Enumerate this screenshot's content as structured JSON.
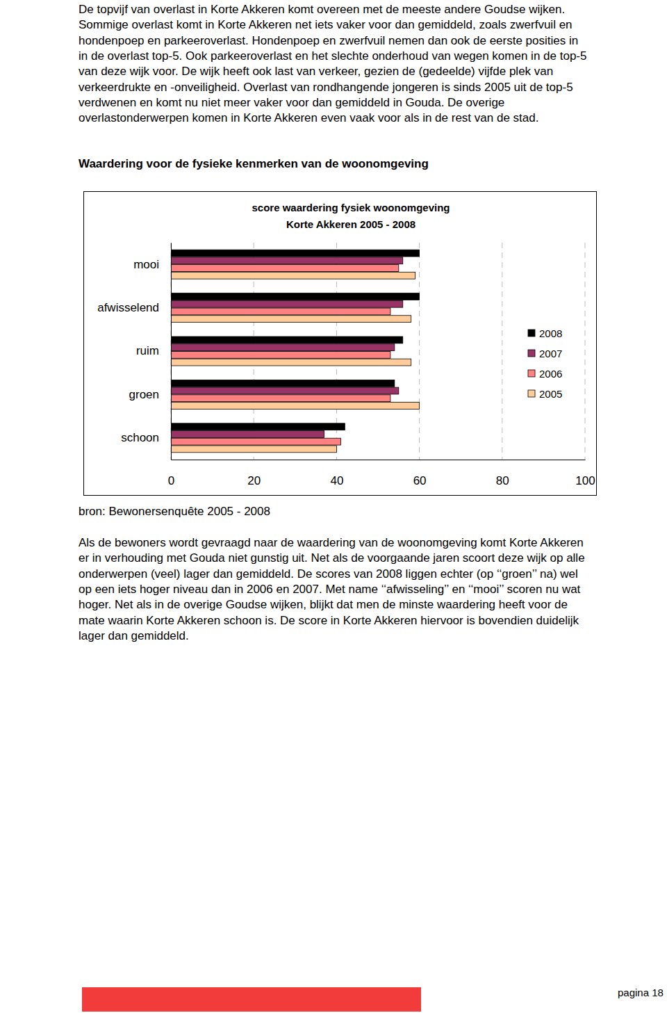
{
  "paragraphs_top": [
    "De topvijf van overlast in Korte Akkeren komt overeen met de meeste andere Goudse wijken.",
    "Sommige overlast komt in Korte Akkeren net iets vaker voor dan gemiddeld, zoals zwerfvuil en",
    "hondenpoep en parkeeroverlast. Hondenpoep en zwerfvuil nemen dan ook de eerste posities in",
    "in de overlast top-5. Ook parkeeroverlast en het slechte onderhoud van wegen komen in de top-5",
    "van deze wijk voor. De wijk heeft ook last van verkeer, gezien de (gedeelde) vijfde plek van",
    "verkeerdrukte en -onveiligheid. Overlast van rondhangende jongeren is sinds 2005 uit de top-5",
    "verdwenen en komt nu niet meer vaker voor dan gemiddeld in Gouda. De overige",
    "overlastonderwerpen komen in Korte Akkeren even vaak voor als in de rest van de stad."
  ],
  "heading": "Waardering voor de fysieke kenmerken van de woonomgeving",
  "chart_data": {
    "type": "bar",
    "orientation": "horizontal",
    "title": "score waardering fysiek woonomgeving",
    "subtitle": "Korte Akkeren 2005 - 2008",
    "categories": [
      "mooi",
      "afwisselend",
      "ruim",
      "groen",
      "schoon"
    ],
    "series": [
      {
        "name": "2008",
        "color": "#000000",
        "values": [
          60,
          60,
          56,
          54,
          42
        ]
      },
      {
        "name": "2007",
        "color": "#993366",
        "values": [
          56,
          56,
          54,
          55,
          37
        ]
      },
      {
        "name": "2006",
        "color": "#ff8080",
        "values": [
          55,
          53,
          53,
          53,
          41
        ]
      },
      {
        "name": "2005",
        "color": "#ffcc99",
        "values": [
          59,
          58,
          58,
          60,
          40
        ]
      }
    ],
    "xlim": [
      0,
      100
    ],
    "xticks": [
      0,
      20,
      40,
      60,
      80,
      100
    ],
    "grid": true,
    "legend": "right"
  },
  "source": "bron: Bewonersenquête 2005 - 2008",
  "paragraphs_bottom": [
    "Als de bewoners wordt gevraagd naar de waardering van de woonomgeving komt Korte Akkeren",
    "er in verhouding met Gouda niet gunstig uit. Net als de voorgaande jaren scoort deze wijk op alle",
    "onderwerpen (veel) lager dan gemiddeld. De scores van 2008 liggen echter (op ‘‘groen’’ na) wel",
    "op een iets hoger niveau dan in 2006 en 2007. Met name ‘‘afwisseling’’ en ‘‘mooi’’ scoren nu wat",
    "hoger. Net als in de overige Goudse wijken, blijkt dat men de minste waardering heeft voor de",
    "mate waarin Korte Akkeren schoon is. De score in Korte Akkeren hiervoor is bovendien duidelijk",
    "lager dan gemiddeld."
  ],
  "footer": {
    "page": "pagina 18"
  }
}
